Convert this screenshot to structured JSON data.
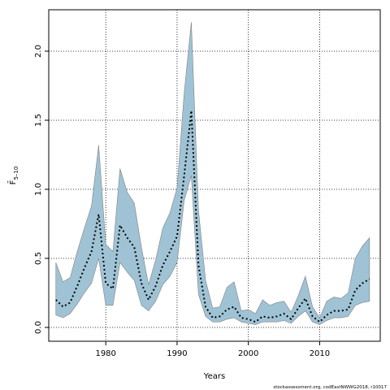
{
  "chart_data": {
    "type": "area",
    "xlabel": "Years",
    "ylabel": "F̄",
    "ylabel_subscript": "5–10",
    "xlim": [
      1972,
      2018.5
    ],
    "ylim": [
      -0.1,
      2.3
    ],
    "xticks": [
      1980,
      1990,
      2000,
      2010
    ],
    "yticks": [
      0.0,
      0.5,
      1.0,
      1.5,
      2.0
    ],
    "ytick_labels": [
      "0.0",
      "0.5",
      "1.0",
      "1.5",
      "2.0"
    ],
    "grid": true,
    "grid_style": "dotted",
    "band_color": "#9fc3d5",
    "line_color": "#000000",
    "x": [
      1973,
      1974,
      1975,
      1976,
      1977,
      1978,
      1979,
      1980,
      1981,
      1982,
      1983,
      1984,
      1985,
      1986,
      1987,
      1988,
      1989,
      1990,
      1991,
      1992,
      1993,
      1994,
      1995,
      1996,
      1997,
      1998,
      1999,
      2000,
      2001,
      2002,
      2003,
      2004,
      2005,
      2006,
      2007,
      2008,
      2009,
      2010,
      2011,
      2012,
      2013,
      2014,
      2015,
      2016,
      2017
    ],
    "series": [
      {
        "role": "estimate",
        "values": [
          0.2,
          0.15,
          0.18,
          0.3,
          0.43,
          0.55,
          0.82,
          0.32,
          0.28,
          0.74,
          0.65,
          0.58,
          0.32,
          0.2,
          0.3,
          0.45,
          0.55,
          0.66,
          1.1,
          1.57,
          0.45,
          0.15,
          0.07,
          0.08,
          0.13,
          0.15,
          0.07,
          0.06,
          0.04,
          0.08,
          0.07,
          0.08,
          0.1,
          0.06,
          0.14,
          0.21,
          0.08,
          0.04,
          0.09,
          0.12,
          0.12,
          0.13,
          0.27,
          0.32,
          0.35
        ]
      },
      {
        "role": "lower",
        "values": [
          0.09,
          0.07,
          0.1,
          0.17,
          0.25,
          0.32,
          0.5,
          0.16,
          0.16,
          0.47,
          0.4,
          0.34,
          0.16,
          0.12,
          0.19,
          0.31,
          0.37,
          0.47,
          0.92,
          1.1,
          0.24,
          0.08,
          0.04,
          0.04,
          0.06,
          0.07,
          0.04,
          0.03,
          0.02,
          0.04,
          0.04,
          0.04,
          0.05,
          0.03,
          0.08,
          0.12,
          0.04,
          0.02,
          0.05,
          0.07,
          0.07,
          0.08,
          0.16,
          0.18,
          0.19
        ]
      },
      {
        "role": "upper",
        "values": [
          0.47,
          0.33,
          0.36,
          0.55,
          0.72,
          0.88,
          1.32,
          0.6,
          0.55,
          1.15,
          0.98,
          0.9,
          0.58,
          0.31,
          0.49,
          0.72,
          0.83,
          1.01,
          1.7,
          2.21,
          0.85,
          0.34,
          0.14,
          0.15,
          0.29,
          0.33,
          0.12,
          0.13,
          0.1,
          0.2,
          0.16,
          0.18,
          0.19,
          0.11,
          0.23,
          0.37,
          0.15,
          0.07,
          0.19,
          0.22,
          0.21,
          0.25,
          0.5,
          0.59,
          0.65
        ]
      }
    ]
  },
  "footnote": "stockassessment.org, codEastNWWG2018, r10017"
}
